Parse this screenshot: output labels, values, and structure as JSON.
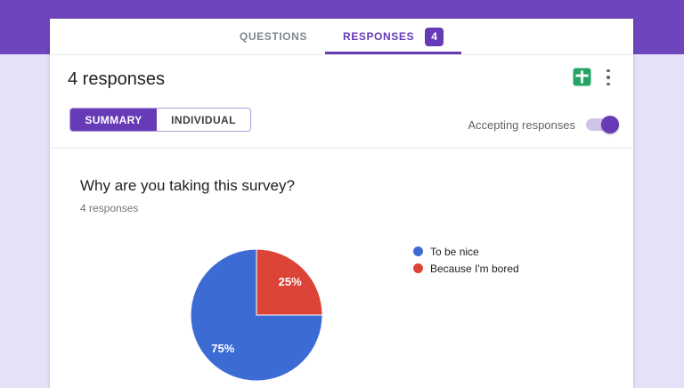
{
  "tabs": {
    "questions_label": "QUESTIONS",
    "responses_label": "RESPONSES",
    "responses_count_badge": "4"
  },
  "header": {
    "title": "4 responses",
    "summary_tab_label": "SUMMARY",
    "individual_tab_label": "INDIVIDUAL",
    "accepting_responses_label": "Accepting responses",
    "accepting_responses_on": true,
    "spreadsheet_icon": "create-spreadsheet-icon",
    "more_icon": "more-options-kebab-icon"
  },
  "question": {
    "title": "Why are you taking this survey?",
    "response_count_label": "4 responses"
  },
  "chart_data": {
    "type": "pie",
    "title": "Why are you taking this survey?",
    "labels": [
      "To be nice",
      "Because I'm bored"
    ],
    "values": [
      75,
      25
    ],
    "unit": "percent",
    "slice_labels": [
      "75%",
      "25%"
    ],
    "colors": [
      "#3c6bd4",
      "#db4437"
    ],
    "legend_position": "right",
    "rotation_deg": 90,
    "label_radius_ratio": 0.72
  },
  "colors": {
    "theme_purple": "#673ab7",
    "banner_purple": "#6d45bd",
    "page_background": "#e6e1f6",
    "sheets_green": "#23a566",
    "pie_blue": "#3c6bd4",
    "pie_red": "#db4437"
  }
}
